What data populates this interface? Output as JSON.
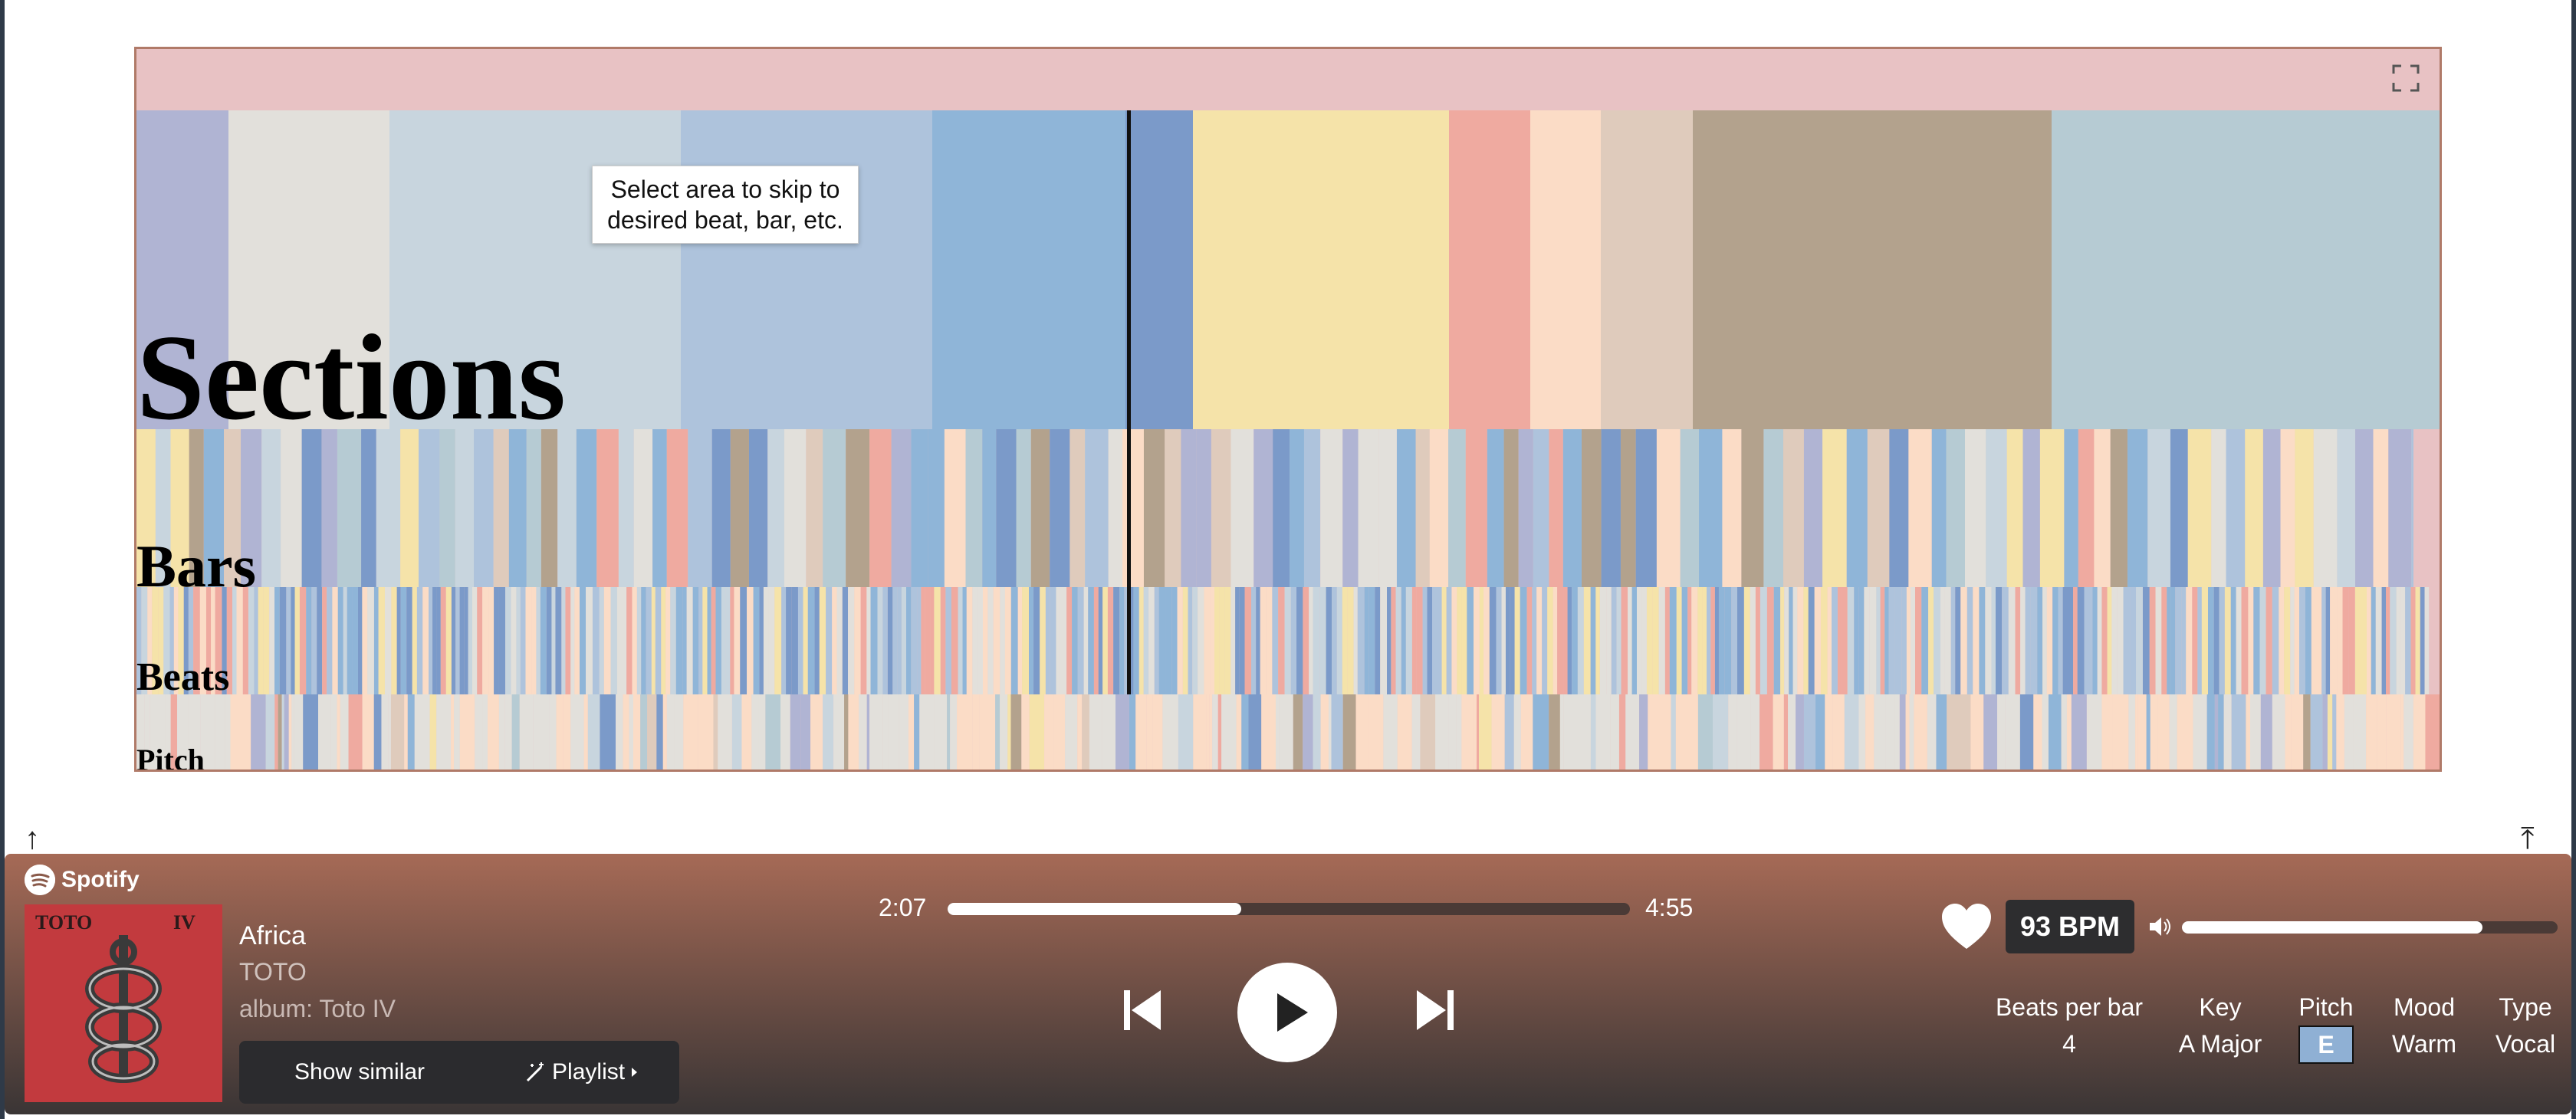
{
  "visualization": {
    "tooltip": "Select area to skip to desired beat, bar, etc.",
    "rows": [
      {
        "id": "sections",
        "label": "Sections"
      },
      {
        "id": "bars",
        "label": "Bars"
      },
      {
        "id": "beats",
        "label": "Beats"
      },
      {
        "id": "pitch",
        "label": "Pitch"
      }
    ],
    "progress_fraction": 0.43,
    "section_colors": [
      "#b0b4d3",
      "#e2e0db",
      "#c8d5de",
      "#aec3dc",
      "#8fb5d8",
      "#7b9ac9",
      "#f5e3a9",
      "#efaaa0",
      "#fbdcc6",
      "#dfcbbc",
      "#b3a28d",
      "#b6cbd3"
    ],
    "palette": [
      "#b0b4d3",
      "#e2e0db",
      "#c8d5de",
      "#aec3dc",
      "#8fb5d8",
      "#7b9ac9",
      "#f5e3a9",
      "#efaaa0",
      "#fbdcc6",
      "#dfcbbc",
      "#b3a28d",
      "#b6cbd3"
    ]
  },
  "player": {
    "brand": "Spotify",
    "track": {
      "title": "Africa",
      "artist": "TOTO",
      "album": "album: Toto IV"
    },
    "buttons": {
      "show_similar": "Show similar",
      "playlist": "Playlist"
    },
    "time_elapsed": "2:07",
    "time_total": "4:55",
    "progress_fraction": 0.43,
    "bpm": "93 BPM",
    "volume_fraction": 0.8,
    "meta": {
      "beats_per_bar_label": "Beats per bar",
      "beats_per_bar_value": "4",
      "key_label": "Key",
      "key_value": "A Major",
      "pitch_label": "Pitch",
      "pitch_value": "E",
      "mood_label": "Mood",
      "mood_value": "Warm",
      "type_label": "Type",
      "type_value": "Vocal"
    },
    "colors": {
      "player_top": "#a66a56",
      "player_bottom": "#3a3535",
      "cover": "#c23a3e",
      "pitch_badge": "#8fb0d4"
    }
  }
}
